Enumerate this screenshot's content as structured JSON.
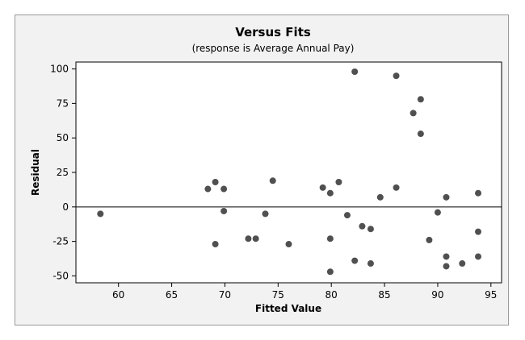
{
  "chart_data": {
    "type": "scatter",
    "title": "Versus Fits",
    "subtitle": "(response is Average Annual Pay)",
    "xlabel": "Fitted Value",
    "ylabel": "Residual",
    "xlim": [
      56,
      96
    ],
    "ylim": [
      -55,
      105
    ],
    "xticks": [
      60,
      65,
      70,
      75,
      80,
      85,
      90,
      95
    ],
    "yticks": [
      -50,
      -25,
      0,
      25,
      50,
      75,
      100
    ],
    "reference_line_y": 0,
    "grid": false,
    "legend": "none",
    "marker_color": "#505050",
    "points": [
      {
        "x": 58.3,
        "y": -5
      },
      {
        "x": 68.4,
        "y": 13
      },
      {
        "x": 69.1,
        "y": 18
      },
      {
        "x": 69.1,
        "y": -27
      },
      {
        "x": 69.9,
        "y": 13
      },
      {
        "x": 69.9,
        "y": -3
      },
      {
        "x": 72.2,
        "y": -23
      },
      {
        "x": 72.9,
        "y": -23
      },
      {
        "x": 73.8,
        "y": -5
      },
      {
        "x": 74.5,
        "y": 19
      },
      {
        "x": 76.0,
        "y": -27
      },
      {
        "x": 79.2,
        "y": 14
      },
      {
        "x": 79.9,
        "y": 10
      },
      {
        "x": 79.9,
        "y": -23
      },
      {
        "x": 79.9,
        "y": -47
      },
      {
        "x": 80.7,
        "y": 18
      },
      {
        "x": 81.5,
        "y": -6
      },
      {
        "x": 82.2,
        "y": 98
      },
      {
        "x": 82.2,
        "y": -39
      },
      {
        "x": 82.9,
        "y": -14
      },
      {
        "x": 83.7,
        "y": -16
      },
      {
        "x": 83.7,
        "y": -41
      },
      {
        "x": 84.6,
        "y": 7
      },
      {
        "x": 86.1,
        "y": 95
      },
      {
        "x": 86.1,
        "y": 14
      },
      {
        "x": 87.7,
        "y": 68
      },
      {
        "x": 88.4,
        "y": 78
      },
      {
        "x": 88.4,
        "y": 53
      },
      {
        "x": 89.2,
        "y": -24
      },
      {
        "x": 90.0,
        "y": -4
      },
      {
        "x": 90.8,
        "y": 7
      },
      {
        "x": 90.8,
        "y": -36
      },
      {
        "x": 90.8,
        "y": -43
      },
      {
        "x": 92.3,
        "y": -41
      },
      {
        "x": 93.8,
        "y": 10
      },
      {
        "x": 93.8,
        "y": -18
      },
      {
        "x": 93.8,
        "y": -36
      }
    ]
  }
}
